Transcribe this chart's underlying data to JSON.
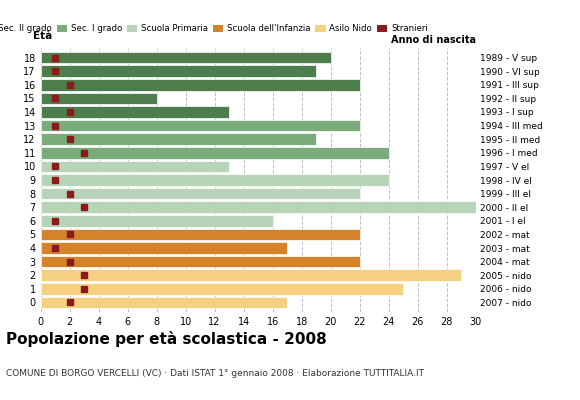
{
  "ages": [
    18,
    17,
    16,
    15,
    14,
    13,
    12,
    11,
    10,
    9,
    8,
    7,
    6,
    5,
    4,
    3,
    2,
    1,
    0
  ],
  "bar_values": [
    20,
    19,
    22,
    8,
    13,
    22,
    19,
    24,
    13,
    24,
    22,
    30,
    16,
    22,
    17,
    22,
    29,
    25,
    17
  ],
  "stranieri": [
    1,
    1,
    2,
    1,
    2,
    1,
    2,
    3,
    1,
    1,
    2,
    3,
    1,
    2,
    1,
    2,
    3,
    3,
    2
  ],
  "categories": [
    "Sec. II grado",
    "Sec. I grado",
    "Scuola Primaria",
    "Scuola dell'Infanzia",
    "Asilo Nido"
  ],
  "bar_colors": [
    "#4d7c4d",
    "#7aab7a",
    "#b8d4b8",
    "#d4832a",
    "#f5d080"
  ],
  "stranieri_color": "#8b1a1a",
  "right_labels": [
    "1989 - V sup",
    "1990 - VI sup",
    "1991 - III sup",
    "1992 - II sup",
    "1993 - I sup",
    "1994 - III med",
    "1995 - II med",
    "1996 - I med",
    "1997 - V el",
    "1998 - IV el",
    "1999 - III el",
    "2000 - II el",
    "2001 - I el",
    "2002 - mat",
    "2003 - mat",
    "2004 - mat",
    "2005 - nido",
    "2006 - nido",
    "2007 - nido"
  ],
  "age_color_map": {
    "18": 0,
    "17": 0,
    "16": 0,
    "15": 0,
    "14": 0,
    "13": 1,
    "12": 1,
    "11": 1,
    "10": 2,
    "9": 2,
    "8": 2,
    "7": 2,
    "6": 2,
    "5": 3,
    "4": 3,
    "3": 3,
    "2": 4,
    "1": 4,
    "0": 4
  },
  "xlim": [
    0,
    30
  ],
  "xticks": [
    0,
    2,
    4,
    6,
    8,
    10,
    12,
    14,
    16,
    18,
    20,
    22,
    24,
    26,
    28,
    30
  ],
  "title": "Popolazione per età scolastica - 2008",
  "subtitle": "COMUNE DI BORGO VERCELLI (VC) · Dati ISTAT 1° gennaio 2008 · Elaborazione TUTTITALIA.IT",
  "ylabel": "Età",
  "right_header": "Anno di nascita",
  "bg_color": "#ffffff",
  "grid_color": "#c0c0c0",
  "bar_height": 0.85
}
